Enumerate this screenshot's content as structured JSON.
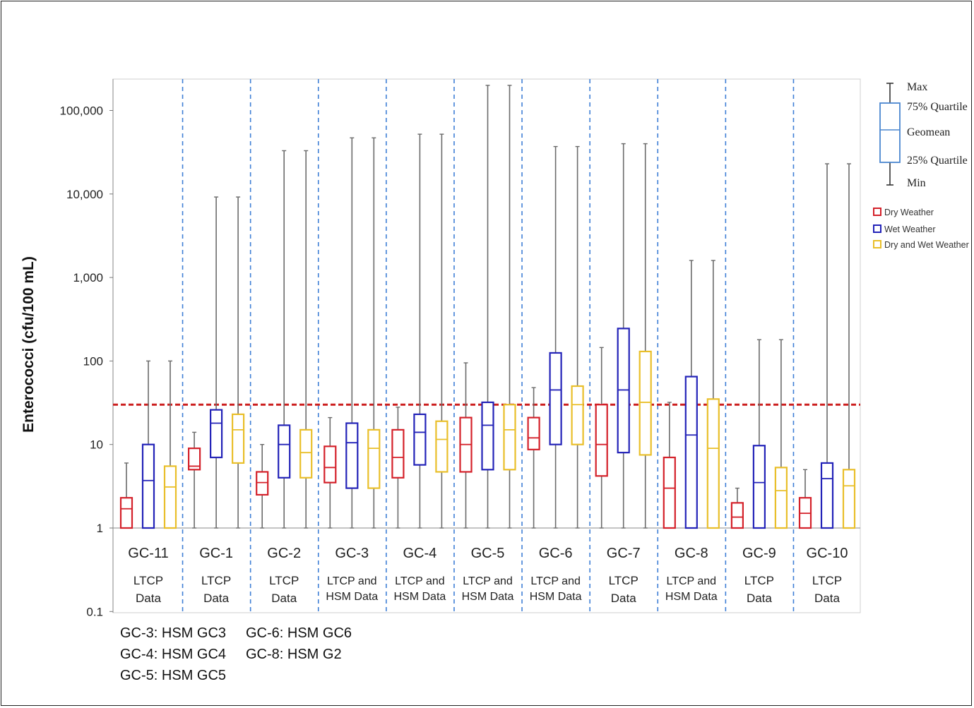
{
  "chart_data": {
    "type": "box",
    "ylabel": "Enterococci (cfu/100 mL)",
    "yscale": "log",
    "ylim": [
      0.1,
      250000
    ],
    "yticks": [
      {
        "value": 0.1,
        "label": "0.1"
      },
      {
        "value": 1,
        "label": "1"
      },
      {
        "value": 10,
        "label": "10"
      },
      {
        "value": 100,
        "label": "100"
      },
      {
        "value": 1000,
        "label": "1,000"
      },
      {
        "value": 10000,
        "label": "10,000"
      },
      {
        "value": 100000,
        "label": "100,000"
      }
    ],
    "threshold": {
      "value": 30,
      "color": "#cc1f1f"
    },
    "series_colors": {
      "dry": "#d4212a",
      "wet": "#2323b8",
      "both": "#e9bf2a"
    },
    "groups": [
      {
        "name": "GC-11",
        "sub": [
          "LTCP",
          "Data"
        ],
        "boxes": {
          "dry": [
            1,
            1,
            1.7,
            2.3,
            6
          ],
          "wet": [
            1,
            1,
            3.7,
            10,
            100
          ],
          "both": [
            1,
            1,
            3.1,
            5.5,
            100
          ]
        }
      },
      {
        "name": "GC-1",
        "sub": [
          "LTCP",
          "Data"
        ],
        "boxes": {
          "dry": [
            1,
            5,
            5.5,
            9,
            14
          ],
          "wet": [
            1,
            7,
            18,
            26,
            9200
          ],
          "both": [
            1,
            6,
            15,
            23,
            9200
          ]
        }
      },
      {
        "name": "GC-2",
        "sub": [
          "LTCP",
          "Data"
        ],
        "boxes": {
          "dry": [
            1,
            2.5,
            3.5,
            4.7,
            10
          ],
          "wet": [
            1,
            4,
            10,
            17,
            33000
          ],
          "both": [
            1,
            4,
            8,
            15,
            33000
          ]
        }
      },
      {
        "name": "GC-3",
        "sub": [
          "LTCP and",
          "HSM Data"
        ],
        "boxes": {
          "dry": [
            1,
            3.5,
            5.3,
            9.5,
            21
          ],
          "wet": [
            1,
            3,
            10.5,
            18,
            47000
          ],
          "both": [
            1,
            3,
            9,
            15,
            47000
          ]
        }
      },
      {
        "name": "GC-4",
        "sub": [
          "LTCP and",
          "HSM Data"
        ],
        "boxes": {
          "dry": [
            1,
            4,
            7,
            15,
            28
          ],
          "wet": [
            1,
            5.7,
            14,
            23,
            52000
          ],
          "both": [
            1,
            4.7,
            11.5,
            19,
            52000
          ]
        }
      },
      {
        "name": "GC-5",
        "sub": [
          "LTCP and",
          "HSM Data"
        ],
        "boxes": {
          "dry": [
            1,
            4.7,
            10,
            21,
            95
          ],
          "wet": [
            1,
            5,
            17,
            32,
            200000
          ],
          "both": [
            1,
            5,
            15,
            30,
            200000
          ]
        }
      },
      {
        "name": "GC-6",
        "sub": [
          "LTCP and",
          "HSM Data"
        ],
        "boxes": {
          "dry": [
            1,
            8.7,
            12,
            21,
            48
          ],
          "wet": [
            1,
            10,
            45,
            125,
            37000
          ],
          "both": [
            1,
            10,
            30,
            50,
            37000
          ]
        }
      },
      {
        "name": "GC-7",
        "sub": [
          "LTCP",
          "Data"
        ],
        "boxes": {
          "dry": [
            1,
            4.2,
            10,
            30,
            145
          ],
          "wet": [
            1,
            8,
            45,
            245,
            40000
          ],
          "both": [
            1,
            7.5,
            32,
            130,
            40000
          ]
        }
      },
      {
        "name": "GC-8",
        "sub": [
          "LTCP and",
          "HSM Data"
        ],
        "boxes": {
          "dry": [
            1,
            1,
            3,
            7,
            32
          ],
          "wet": [
            1,
            1,
            13,
            65,
            1600
          ],
          "both": [
            1,
            1,
            9,
            35,
            1600
          ]
        }
      },
      {
        "name": "GC-9",
        "sub": [
          "LTCP",
          "Data"
        ],
        "boxes": {
          "dry": [
            1,
            1,
            1.35,
            2,
            3
          ],
          "wet": [
            1,
            1,
            3.5,
            9.7,
            180
          ],
          "both": [
            1,
            1,
            2.8,
            5.3,
            180
          ]
        }
      },
      {
        "name": "GC-10",
        "sub": [
          "LTCP",
          "Data"
        ],
        "boxes": {
          "dry": [
            1,
            1,
            1.5,
            2.3,
            5
          ],
          "wet": [
            1,
            1,
            3.9,
            6,
            23000
          ],
          "both": [
            1,
            1,
            3.2,
            5,
            23000
          ]
        }
      }
    ],
    "legend_box": [
      "Max",
      "75% Quartile",
      "Geomean",
      "25% Quartile",
      "Min"
    ],
    "legend_series": [
      "Dry Weather",
      "Wet Weather",
      "Dry and Wet Weather"
    ]
  },
  "notes": {
    "col1": [
      "GC-3: HSM GC3",
      "GC-4: HSM GC4",
      "GC-5: HSM GC5"
    ],
    "col2": [
      "GC-6: HSM GC6",
      "GC-8: HSM G2"
    ]
  }
}
